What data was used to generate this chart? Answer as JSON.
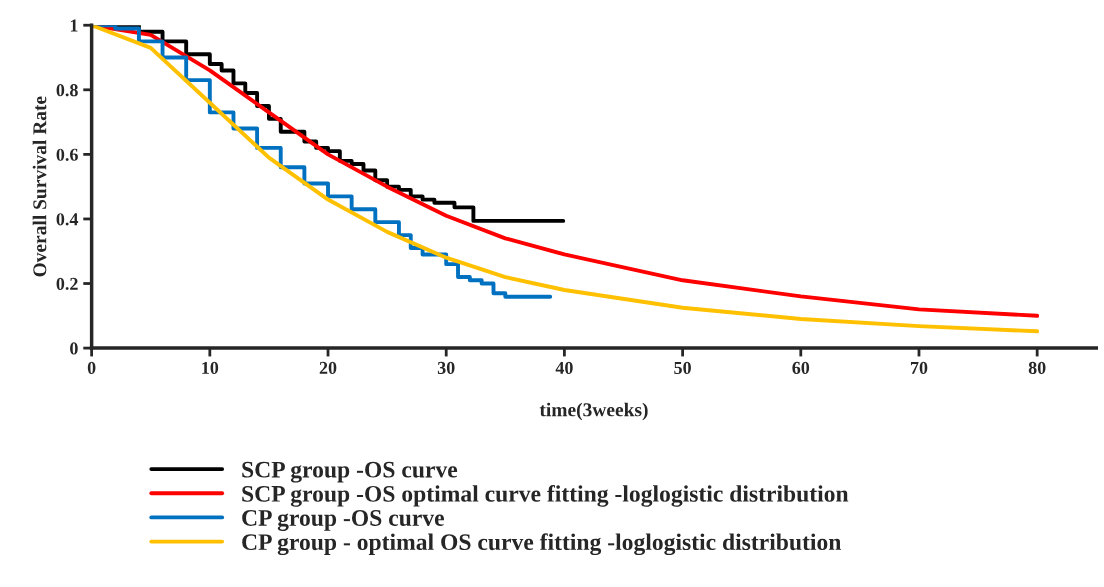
{
  "chart_data": {
    "type": "line",
    "xlabel": "time(3weeks)",
    "ylabel": "Overall Survival Rate",
    "xlim": [
      0,
      85
    ],
    "ylim": [
      0,
      1
    ],
    "xticks": [
      0,
      10,
      20,
      30,
      40,
      50,
      60,
      70,
      80
    ],
    "yticks": [
      0,
      0.2,
      0.4,
      0.6,
      0.8,
      1
    ],
    "grid": false,
    "legend": "bottom",
    "marker": "none",
    "line_style": "solid",
    "series": [
      {
        "name": "SCP group -OS curve",
        "type": "step",
        "color": "#000000",
        "x": [
          0,
          2,
          4,
          6,
          8,
          10,
          11,
          12,
          13,
          14,
          15,
          16,
          18,
          19,
          20,
          21,
          22,
          23,
          24,
          25,
          26,
          27,
          28,
          29,
          30.7,
          32.3,
          39.9
        ],
        "values": [
          1,
          1,
          0.98,
          0.95,
          0.91,
          0.88,
          0.86,
          0.82,
          0.79,
          0.75,
          0.71,
          0.67,
          0.64,
          0.62,
          0.61,
          0.58,
          0.57,
          0.55,
          0.52,
          0.5,
          0.49,
          0.47,
          0.46,
          0.45,
          0.436,
          0.394,
          0.394
        ]
      },
      {
        "name": "SCP group -OS optimal curve fitting -loglogistic distribution",
        "color": "#ff0000",
        "x": [
          0,
          5,
          10,
          15,
          20,
          25,
          30,
          35,
          40,
          50,
          60,
          70,
          80
        ],
        "values": [
          1,
          0.97,
          0.86,
          0.73,
          0.6,
          0.5,
          0.41,
          0.34,
          0.29,
          0.21,
          0.16,
          0.12,
          0.1
        ]
      },
      {
        "name": "CP group -OS curve",
        "type": "step",
        "color": "#0070c0",
        "x": [
          0,
          2,
          4,
          6,
          8,
          10,
          12,
          14,
          16,
          18,
          20,
          22,
          24,
          26,
          27,
          28,
          30,
          31,
          32,
          33,
          34,
          35,
          38.8
        ],
        "values": [
          1,
          0.99,
          0.95,
          0.9,
          0.83,
          0.73,
          0.68,
          0.62,
          0.56,
          0.51,
          0.47,
          0.43,
          0.39,
          0.35,
          0.31,
          0.29,
          0.26,
          0.22,
          0.21,
          0.2,
          0.17,
          0.159,
          0.159
        ]
      },
      {
        "name": "CP group - optimal OS curve fitting -loglogistic distribution",
        "color": "#ffc000",
        "x": [
          0,
          5,
          10,
          15,
          20,
          25,
          30,
          35,
          40,
          50,
          60,
          70,
          80
        ],
        "values": [
          1,
          0.93,
          0.76,
          0.59,
          0.46,
          0.36,
          0.28,
          0.22,
          0.18,
          0.125,
          0.09,
          0.068,
          0.052
        ]
      }
    ]
  }
}
